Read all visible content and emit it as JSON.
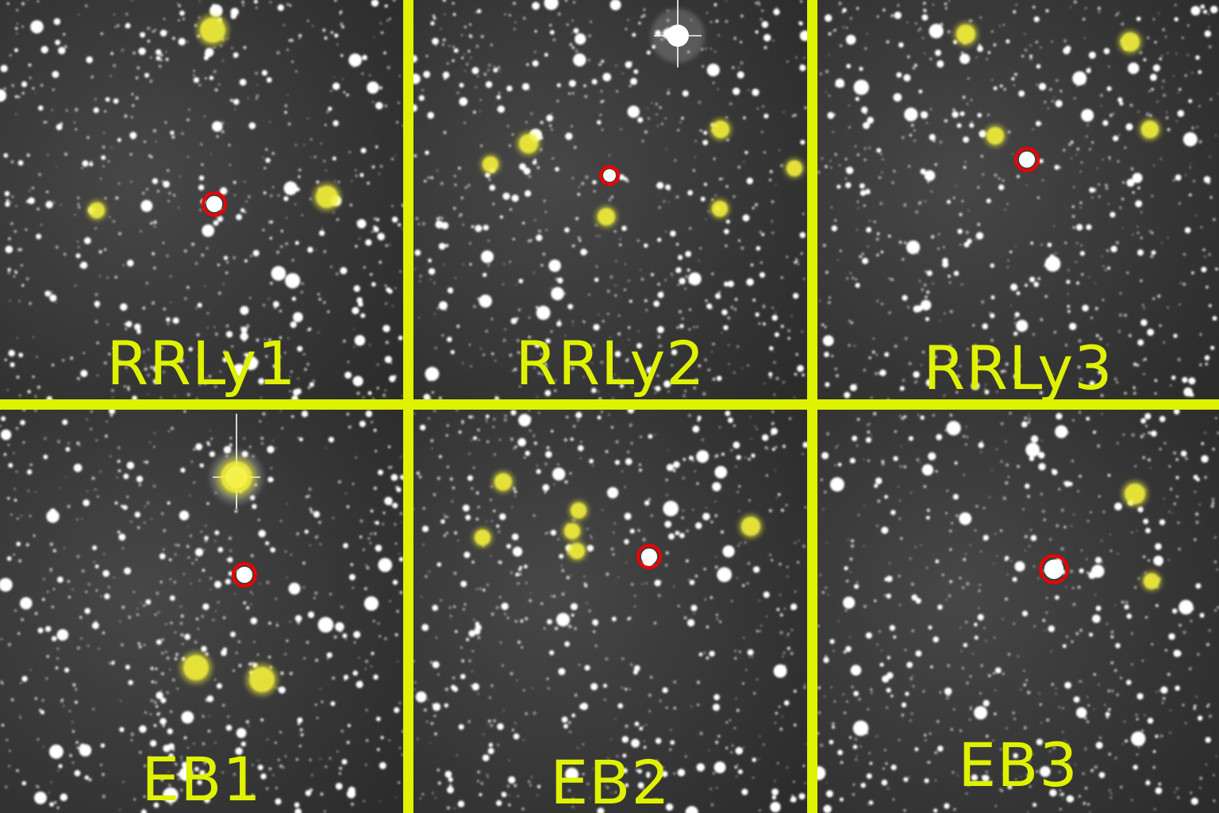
{
  "colors": {
    "divider": "#dff200",
    "label": "#dff200",
    "marker": "#ee0000",
    "comparison_star": "#f2f03a",
    "sky": "#3b3b3b"
  },
  "panels": [
    {
      "id": "rrly1",
      "label": "RRLy1"
    },
    {
      "id": "rrly2",
      "label": "RRLy2"
    },
    {
      "id": "rrly3",
      "label": "RRLy3"
    },
    {
      "id": "eb1",
      "label": "EB1"
    },
    {
      "id": "eb2",
      "label": "EB2"
    },
    {
      "id": "eb3",
      "label": "EB3"
    }
  ]
}
